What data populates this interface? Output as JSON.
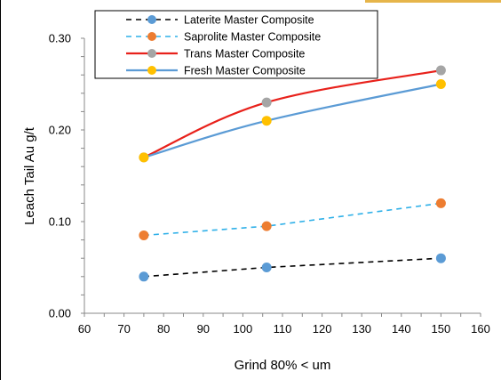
{
  "chart_data": {
    "type": "line",
    "xlabel": "Grind 80% < um",
    "ylabel": "Leach Tail Au g/t",
    "xlim": [
      60,
      160
    ],
    "ylim": [
      0,
      0.3
    ],
    "x_ticks": [
      "60",
      "70",
      "80",
      "90",
      "100",
      "110",
      "120",
      "130",
      "140",
      "150",
      "160"
    ],
    "y_ticks": [
      "0.00",
      "0.10",
      "0.20",
      "0.30"
    ],
    "grid": false,
    "legend_position": "top-left",
    "series": [
      {
        "name": "Laterite Master Composite",
        "line_color": "#000000",
        "marker_color": "#5b9bd5",
        "dash": true,
        "x": [
          75,
          106,
          150
        ],
        "y": [
          0.04,
          0.05,
          0.06
        ]
      },
      {
        "name": "Saprolite Master Composite",
        "line_color": "#2fb0e8",
        "marker_color": "#ed7d31",
        "dash": true,
        "x": [
          75,
          106,
          150
        ],
        "y": [
          0.085,
          0.095,
          0.12
        ]
      },
      {
        "name": "Trans Master Composite",
        "line_color": "#e8211b",
        "marker_color": "#a5a5a5",
        "dash": false,
        "x": [
          75,
          106,
          150
        ],
        "y": [
          0.17,
          0.23,
          0.265
        ]
      },
      {
        "name": "Fresh Master Composite",
        "line_color": "#5b9bd5",
        "marker_color": "#ffc000",
        "dash": false,
        "x": [
          75,
          106,
          150
        ],
        "y": [
          0.17,
          0.21,
          0.25
        ]
      }
    ]
  }
}
